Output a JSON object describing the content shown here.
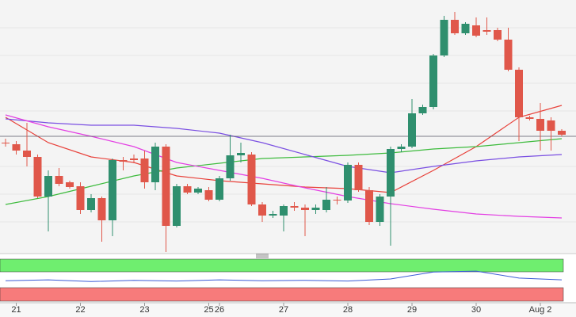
{
  "chart_data": {
    "type": "candlestick",
    "ylim": [
      0,
      320
    ],
    "up_color": "#2f8f6e",
    "down_color": "#e0574a",
    "candles": {
      "open": [
        140,
        138,
        130,
        122,
        72,
        98,
        90,
        85,
        55,
        70,
        42,
        118,
        120,
        120,
        90,
        135,
        35,
        85,
        77,
        80,
        68,
        95,
        124,
        125,
        62,
        48,
        48,
        60,
        58,
        55,
        55,
        68,
        67,
        112,
        80,
        40,
        72,
        132,
        135,
        177,
        185,
        250,
        295,
        278,
        288,
        282,
        282,
        270,
        232,
        172,
        170,
        168,
        155
      ],
      "high": [
        145,
        142,
        165,
        125,
        105,
        108,
        92,
        90,
        75,
        72,
        120,
        122,
        125,
        130,
        140,
        138,
        88,
        88,
        84,
        84,
        98,
        150,
        140,
        128,
        65,
        54,
        62,
        65,
        62,
        62,
        84,
        72,
        115,
        115,
        84,
        75,
        135,
        138,
        195,
        188,
        252,
        300,
        305,
        292,
        298,
        298,
        285,
        285,
        235,
        174,
        190,
        172,
        157
      ],
      "low": [
        135,
        125,
        110,
        70,
        28,
        85,
        82,
        50,
        52,
        15,
        22,
        105,
        114,
        82,
        80,
        2,
        33,
        75,
        75,
        66,
        66,
        92,
        115,
        60,
        40,
        45,
        28,
        54,
        22,
        50,
        52,
        62,
        64,
        78,
        36,
        35,
        10,
        128,
        133,
        175,
        182,
        248,
        276,
        276,
        273,
        276,
        268,
        230,
        142,
        168,
        130,
        130,
        148
      ],
      "close": [
        139,
        130,
        122,
        72,
        98,
        88,
        84,
        55,
        70,
        42,
        118,
        116,
        118,
        90,
        135,
        35,
        85,
        77,
        82,
        68,
        95,
        124,
        127,
        62,
        48,
        50,
        60,
        58,
        55,
        58,
        68,
        67,
        112,
        80,
        40,
        72,
        132,
        135,
        177,
        185,
        250,
        295,
        278,
        290,
        275,
        280,
        270,
        232,
        172,
        170,
        155,
        155,
        150
      ]
    },
    "lines": [
      {
        "color": "#e8413a",
        "x": [
          0,
          4,
          8,
          12,
          16,
          20,
          24,
          28,
          32,
          36,
          40,
          44,
          48,
          52
        ],
        "values": [
          172,
          140,
          122,
          115,
          98,
          92,
          88,
          84,
          82,
          77,
          105,
          135,
          172,
          187
        ]
      },
      {
        "color": "#3dbb3d",
        "x": [
          0,
          4,
          8,
          12,
          16,
          20,
          24,
          28,
          32,
          36,
          40,
          44,
          48,
          52
        ],
        "values": [
          62,
          72,
          85,
          98,
          108,
          114,
          120,
          122,
          124,
          127,
          132,
          135,
          140,
          145
        ]
      },
      {
        "color": "#7a4fe2",
        "x": [
          0,
          4,
          8,
          12,
          16,
          20,
          24,
          28,
          32,
          36,
          40,
          44,
          48,
          52
        ],
        "values": [
          170,
          165,
          162,
          162,
          158,
          152,
          140,
          125,
          110,
          102,
          110,
          117,
          122,
          125
        ]
      },
      {
        "color": "#e33fe3",
        "x": [
          0,
          4,
          8,
          12,
          16,
          20,
          24,
          28,
          32,
          36,
          40,
          44,
          48,
          52
        ],
        "values": [
          175,
          160,
          148,
          135,
          115,
          105,
          95,
          83,
          72,
          63,
          56,
          50,
          47,
          45
        ]
      }
    ],
    "price_line": 148,
    "indicator": {
      "color": "#3b5bd6",
      "ylim": [
        0,
        100
      ],
      "x": [
        0,
        4,
        8,
        12,
        16,
        20,
        24,
        28,
        32,
        36,
        40,
        44,
        48,
        52
      ],
      "values": [
        40,
        45,
        35,
        42,
        38,
        45,
        40,
        42,
        38,
        50,
        90,
        95,
        55,
        45
      ]
    },
    "x_labels": {
      "labels": [
        "21",
        "22",
        "23",
        "25",
        "26",
        "27",
        "28",
        "29",
        "30",
        "Aug 2"
      ],
      "x": [
        1,
        7,
        13,
        19,
        20,
        26,
        32,
        38,
        44,
        50
      ]
    }
  }
}
